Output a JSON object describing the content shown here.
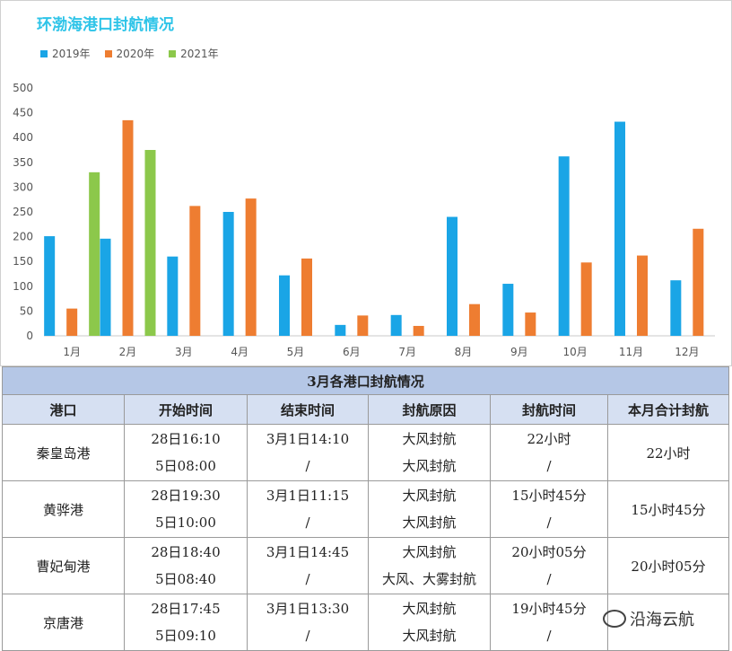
{
  "chart_data": {
    "type": "bar",
    "title": "环渤海港口封航情况",
    "categories": [
      "1月",
      "2月",
      "3月",
      "4月",
      "5月",
      "6月",
      "7月",
      "8月",
      "9月",
      "10月",
      "11月",
      "12月"
    ],
    "series": [
      {
        "name": "2019年",
        "color": "#1aa5e6",
        "values": [
          201,
          196,
          160,
          250,
          122,
          22,
          42,
          240,
          105,
          362,
          432,
          112
        ]
      },
      {
        "name": "2020年",
        "color": "#ee7d31",
        "values": [
          55,
          435,
          262,
          277,
          156,
          41,
          20,
          64,
          47,
          148,
          162,
          216
        ]
      },
      {
        "name": "2021年",
        "color": "#8cc84b",
        "values": [
          330,
          375,
          null,
          null,
          null,
          null,
          null,
          null,
          null,
          null,
          null,
          null
        ]
      }
    ],
    "ylim": [
      0,
      500
    ],
    "yticks": [
      "0",
      "50",
      "100",
      "150",
      "200",
      "250",
      "300",
      "350",
      "400",
      "450",
      "500"
    ],
    "legend_position": "top-left",
    "grid": false
  },
  "table": {
    "title": "3月各港口封航情况",
    "headers": [
      "港口",
      "开始时间",
      "结束时间",
      "封航原因",
      "封航时间",
      "本月合计封航"
    ],
    "rows": [
      {
        "port": "秦皇岛港",
        "start": [
          "28日16:10",
          "5日08:00"
        ],
        "end": [
          "3月1日14:10",
          "/"
        ],
        "reason": [
          "大风封航",
          "大风封航"
        ],
        "duration": [
          "22小时",
          "/"
        ],
        "total": "22小时"
      },
      {
        "port": "黄骅港",
        "start": [
          "28日19:30",
          "5日10:00"
        ],
        "end": [
          "3月1日11:15",
          "/"
        ],
        "reason": [
          "大风封航",
          "大风封航"
        ],
        "duration": [
          "15小时45分",
          "/"
        ],
        "total": "15小时45分"
      },
      {
        "port": "曹妃甸港",
        "start": [
          "28日18:40",
          "5日08:40"
        ],
        "end": [
          "3月1日14:45",
          "/"
        ],
        "reason": [
          "大风封航",
          "大风、大雾封航"
        ],
        "duration": [
          "20小时05分",
          "/"
        ],
        "total": "20小时05分"
      },
      {
        "port": "京唐港",
        "start": [
          "28日17:45",
          "5日09:10"
        ],
        "end": [
          "3月1日13:30",
          "/"
        ],
        "reason": [
          "大风封航",
          "大风封航"
        ],
        "duration": [
          "19小时45分",
          "/"
        ],
        "total": ""
      }
    ]
  },
  "watermark": {
    "text": "沿海云航",
    "icon": "wechat-icon"
  }
}
